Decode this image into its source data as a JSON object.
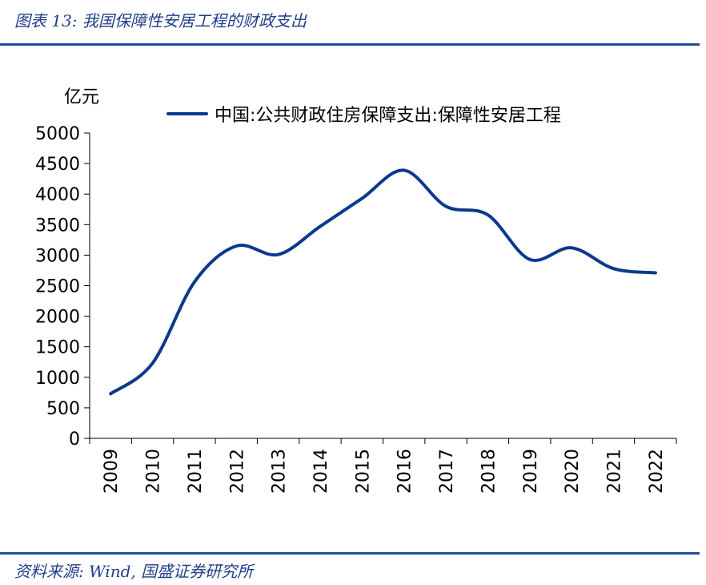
{
  "header": {
    "title": "图表 13:  我国保障性安居工程的财政支出"
  },
  "footer": {
    "source": "资料来源:  Wind, 国盛证券研究所"
  },
  "colors": {
    "accent": "#1f4e9c",
    "series_line": "#0b3a8c",
    "text_blue": "#1f3f8a"
  },
  "chart_data": {
    "type": "line",
    "unit_label": "亿元",
    "x": [
      "2009",
      "2010",
      "2011",
      "2012",
      "2013",
      "2014",
      "2015",
      "2016",
      "2017",
      "2018",
      "2019",
      "2020",
      "2021",
      "2022"
    ],
    "series": [
      {
        "name": "中国:公共财政住房保障支出:保障性安居工程",
        "values": [
          730,
          1230,
          2560,
          3150,
          3010,
          3470,
          3930,
          4390,
          3800,
          3660,
          2930,
          3120,
          2780,
          2710
        ]
      }
    ],
    "y_ticks": [
      "0",
      "500",
      "1000",
      "1500",
      "2000",
      "2500",
      "3000",
      "3500",
      "4000",
      "4500",
      "5000"
    ],
    "ylim": [
      0,
      5000
    ],
    "grid": false,
    "legend_position": "top"
  }
}
